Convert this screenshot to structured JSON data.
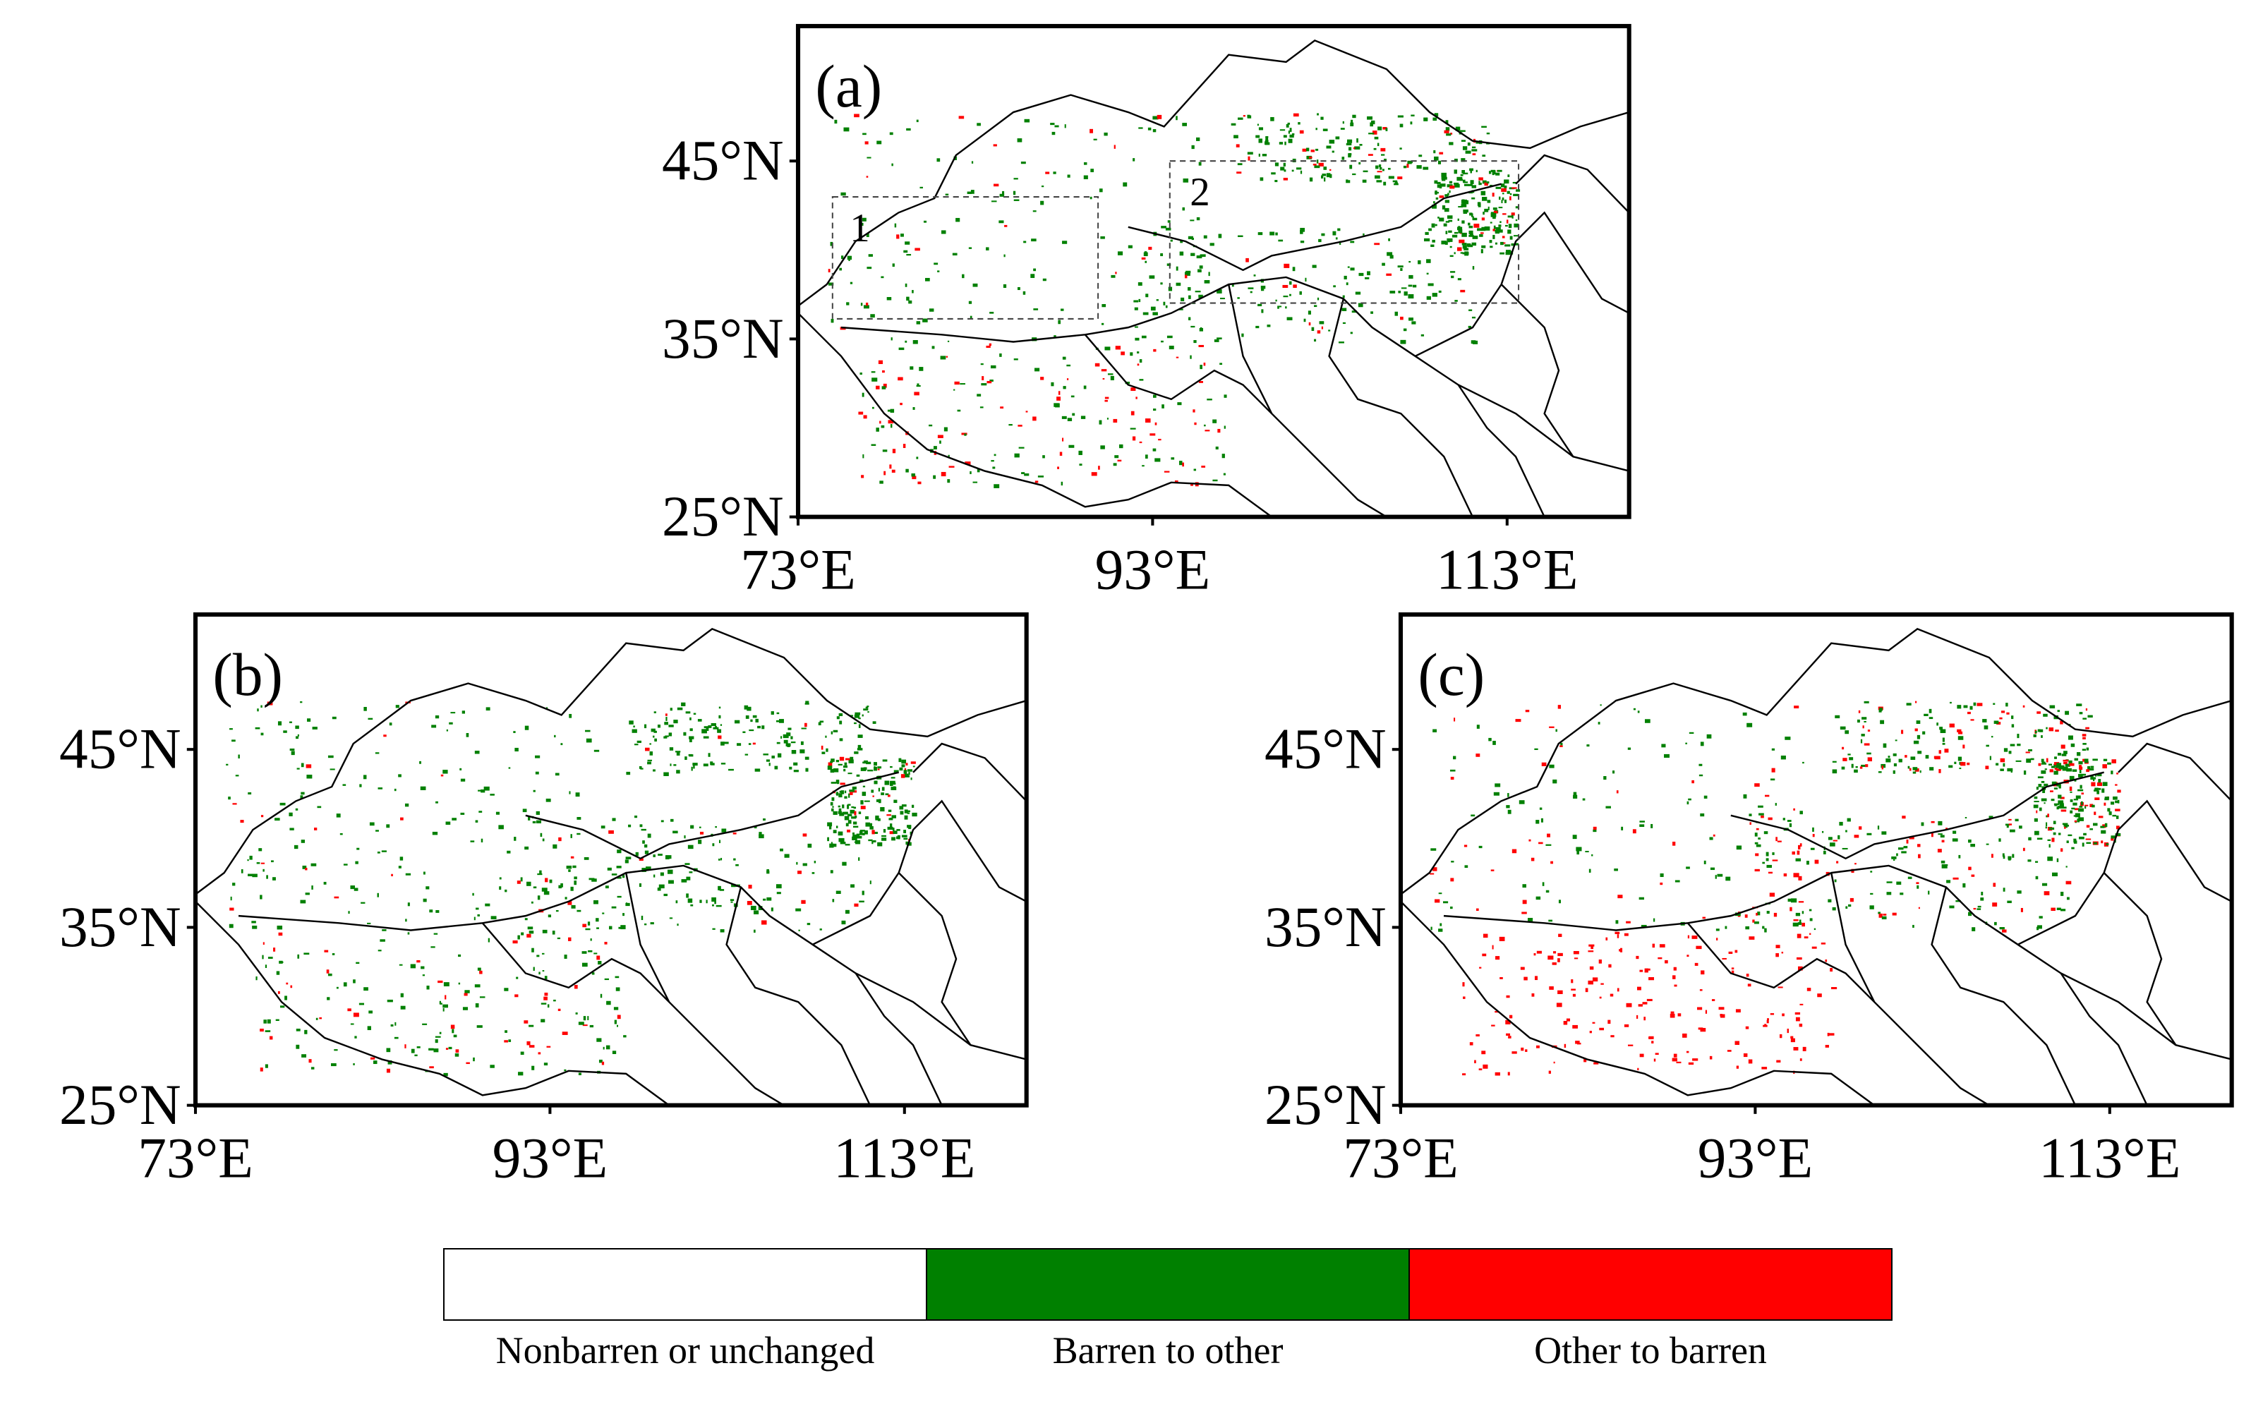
{
  "panels": [
    {
      "label": "(a)",
      "boxes": [
        "1",
        "2"
      ]
    },
    {
      "label": "(b)"
    },
    {
      "label": "(c)"
    }
  ],
  "axes": {
    "lat_ticks": [
      "25°N",
      "35°N",
      "45°N"
    ],
    "lon_ticks": [
      "73°E",
      "93°E",
      "113°E"
    ]
  },
  "legend": [
    {
      "label": "Nonbarren or unchanged",
      "color": "#ffffff"
    },
    {
      "label": "Barren to other",
      "color": "#008000"
    },
    {
      "label": "Other to barren",
      "color": "#ff0000"
    }
  ]
}
